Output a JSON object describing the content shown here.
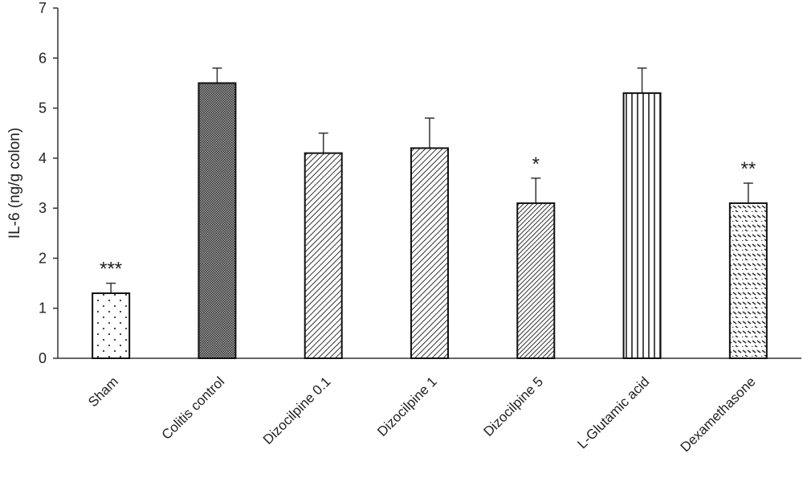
{
  "chart_data": {
    "type": "bar",
    "title": "",
    "xlabel": "",
    "ylabel": "IL-6 (ng/g colon)",
    "ylim": [
      0,
      7
    ],
    "yticks": [
      0,
      1,
      2,
      3,
      4,
      5,
      6,
      7
    ],
    "grid": false,
    "legend": "none",
    "categories": [
      "Sham",
      "Colitis control",
      "Dizocilpine 0.1",
      "Dizocilpine 1",
      "Dizocilpine 5",
      "L-Glutamic acid",
      "Dexamethasone"
    ],
    "values": [
      1.3,
      5.5,
      4.1,
      4.2,
      3.1,
      5.3,
      3.1
    ],
    "errors": [
      0.2,
      0.3,
      0.4,
      0.6,
      0.5,
      0.5,
      0.4
    ],
    "significance": [
      "***",
      "",
      "",
      "",
      "*",
      "",
      "**"
    ],
    "patterns": [
      "dots",
      "dense-grid",
      "diagonal",
      "diagonal",
      "diagonal-dense",
      "vertical",
      "dashed-diagonal"
    ]
  }
}
